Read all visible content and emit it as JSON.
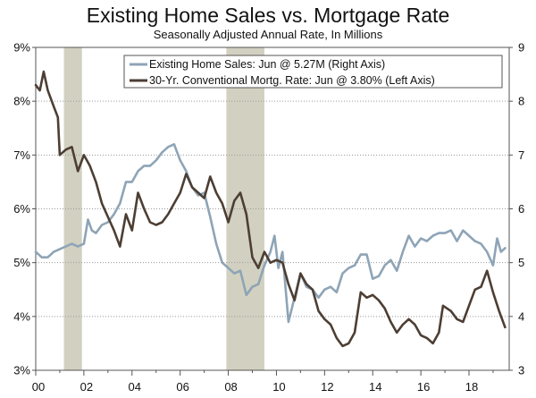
{
  "chart_data": {
    "type": "line",
    "title": "Existing Home Sales vs. Mortgage Rate",
    "subtitle": "Seasonally Adjusted Annual Rate, In Millions",
    "x_axis": {
      "range": [
        2000.0,
        2019.67
      ],
      "tick_values": [
        2000,
        2002,
        2004,
        2006,
        2008,
        2010,
        2012,
        2014,
        2016,
        2018
      ],
      "tick_labels": [
        "00",
        "02",
        "04",
        "06",
        "08",
        "10",
        "12",
        "14",
        "16",
        "18"
      ]
    },
    "left_axis": {
      "range": [
        3,
        9
      ],
      "tick_values": [
        3,
        4,
        5,
        6,
        7,
        8,
        9
      ],
      "tick_labels": [
        "3%",
        "4%",
        "5%",
        "6%",
        "7%",
        "8%",
        "9%"
      ]
    },
    "right_axis": {
      "range": [
        3,
        9
      ],
      "tick_values": [
        3,
        4,
        5,
        6,
        7,
        8,
        9
      ],
      "tick_labels": [
        "3",
        "4",
        "5",
        "6",
        "7",
        "8",
        "9"
      ]
    },
    "grid": true,
    "legend_position": "top-right",
    "recession_shading": [
      {
        "start": 2001.17,
        "end": 2001.92
      },
      {
        "start": 2007.92,
        "end": 2009.5
      }
    ],
    "series": [
      {
        "name": "Existing Home Sales: Jun @ 5.27M (Right Axis)",
        "axis": "right",
        "color": "#8ea4b6",
        "points": [
          [
            2000.0,
            5.2
          ],
          [
            2000.25,
            5.1
          ],
          [
            2000.5,
            5.1
          ],
          [
            2000.75,
            5.2
          ],
          [
            2001.0,
            5.25
          ],
          [
            2001.25,
            5.3
          ],
          [
            2001.5,
            5.35
          ],
          [
            2001.75,
            5.3
          ],
          [
            2002.0,
            5.35
          ],
          [
            2002.17,
            5.8
          ],
          [
            2002.33,
            5.6
          ],
          [
            2002.5,
            5.55
          ],
          [
            2002.75,
            5.7
          ],
          [
            2003.0,
            5.75
          ],
          [
            2003.25,
            5.9
          ],
          [
            2003.5,
            6.1
          ],
          [
            2003.75,
            6.5
          ],
          [
            2004.0,
            6.5
          ],
          [
            2004.25,
            6.7
          ],
          [
            2004.5,
            6.8
          ],
          [
            2004.75,
            6.8
          ],
          [
            2005.0,
            6.9
          ],
          [
            2005.25,
            7.05
          ],
          [
            2005.5,
            7.15
          ],
          [
            2005.75,
            7.2
          ],
          [
            2006.0,
            6.9
          ],
          [
            2006.25,
            6.7
          ],
          [
            2006.5,
            6.4
          ],
          [
            2006.75,
            6.25
          ],
          [
            2007.0,
            6.3
          ],
          [
            2007.25,
            5.85
          ],
          [
            2007.5,
            5.35
          ],
          [
            2007.75,
            5.0
          ],
          [
            2008.0,
            4.9
          ],
          [
            2008.25,
            4.8
          ],
          [
            2008.5,
            4.85
          ],
          [
            2008.75,
            4.4
          ],
          [
            2009.0,
            4.55
          ],
          [
            2009.25,
            4.6
          ],
          [
            2009.5,
            4.95
          ],
          [
            2009.75,
            5.2
          ],
          [
            2009.92,
            5.5
          ],
          [
            2010.08,
            4.9
          ],
          [
            2010.25,
            5.2
          ],
          [
            2010.5,
            3.9
          ],
          [
            2010.75,
            4.35
          ],
          [
            2011.0,
            4.8
          ],
          [
            2011.25,
            4.55
          ],
          [
            2011.5,
            4.5
          ],
          [
            2011.75,
            4.35
          ],
          [
            2012.0,
            4.5
          ],
          [
            2012.25,
            4.55
          ],
          [
            2012.5,
            4.45
          ],
          [
            2012.75,
            4.8
          ],
          [
            2013.0,
            4.9
          ],
          [
            2013.25,
            4.95
          ],
          [
            2013.5,
            5.15
          ],
          [
            2013.75,
            5.15
          ],
          [
            2014.0,
            4.7
          ],
          [
            2014.25,
            4.75
          ],
          [
            2014.5,
            4.95
          ],
          [
            2014.75,
            5.05
          ],
          [
            2015.0,
            4.85
          ],
          [
            2015.25,
            5.2
          ],
          [
            2015.5,
            5.5
          ],
          [
            2015.75,
            5.3
          ],
          [
            2016.0,
            5.45
          ],
          [
            2016.25,
            5.4
          ],
          [
            2016.5,
            5.5
          ],
          [
            2016.75,
            5.55
          ],
          [
            2017.0,
            5.55
          ],
          [
            2017.25,
            5.6
          ],
          [
            2017.5,
            5.4
          ],
          [
            2017.75,
            5.6
          ],
          [
            2018.0,
            5.5
          ],
          [
            2018.25,
            5.4
          ],
          [
            2018.5,
            5.35
          ],
          [
            2018.75,
            5.2
          ],
          [
            2019.0,
            4.95
          ],
          [
            2019.17,
            5.45
          ],
          [
            2019.33,
            5.2
          ],
          [
            2019.5,
            5.27
          ]
        ]
      },
      {
        "name": "30-Yr. Conventional Mortg. Rate: Jun @ 3.80% (Left Axis)",
        "axis": "left",
        "color": "#4d3e33",
        "points": [
          [
            2000.0,
            8.3
          ],
          [
            2000.17,
            8.2
          ],
          [
            2000.33,
            8.55
          ],
          [
            2000.5,
            8.2
          ],
          [
            2000.75,
            7.9
          ],
          [
            2000.92,
            7.7
          ],
          [
            2001.0,
            7.0
          ],
          [
            2001.25,
            7.1
          ],
          [
            2001.5,
            7.15
          ],
          [
            2001.75,
            6.7
          ],
          [
            2002.0,
            7.0
          ],
          [
            2002.25,
            6.8
          ],
          [
            2002.5,
            6.5
          ],
          [
            2002.75,
            6.1
          ],
          [
            2003.0,
            5.85
          ],
          [
            2003.25,
            5.6
          ],
          [
            2003.5,
            5.3
          ],
          [
            2003.75,
            5.9
          ],
          [
            2004.0,
            5.6
          ],
          [
            2004.25,
            6.3
          ],
          [
            2004.5,
            6.0
          ],
          [
            2004.75,
            5.75
          ],
          [
            2005.0,
            5.7
          ],
          [
            2005.25,
            5.75
          ],
          [
            2005.5,
            5.9
          ],
          [
            2005.75,
            6.1
          ],
          [
            2006.0,
            6.3
          ],
          [
            2006.25,
            6.65
          ],
          [
            2006.5,
            6.4
          ],
          [
            2006.75,
            6.3
          ],
          [
            2007.0,
            6.2
          ],
          [
            2007.25,
            6.6
          ],
          [
            2007.5,
            6.3
          ],
          [
            2007.75,
            6.1
          ],
          [
            2008.0,
            5.75
          ],
          [
            2008.25,
            6.15
          ],
          [
            2008.5,
            6.3
          ],
          [
            2008.75,
            5.9
          ],
          [
            2009.0,
            5.1
          ],
          [
            2009.25,
            4.9
          ],
          [
            2009.5,
            5.2
          ],
          [
            2009.75,
            5.0
          ],
          [
            2010.0,
            5.05
          ],
          [
            2010.25,
            5.0
          ],
          [
            2010.5,
            4.6
          ],
          [
            2010.75,
            4.3
          ],
          [
            2011.0,
            4.8
          ],
          [
            2011.25,
            4.6
          ],
          [
            2011.5,
            4.5
          ],
          [
            2011.75,
            4.1
          ],
          [
            2012.0,
            3.95
          ],
          [
            2012.25,
            3.85
          ],
          [
            2012.5,
            3.6
          ],
          [
            2012.75,
            3.45
          ],
          [
            2013.0,
            3.5
          ],
          [
            2013.25,
            3.7
          ],
          [
            2013.5,
            4.45
          ],
          [
            2013.75,
            4.35
          ],
          [
            2014.0,
            4.4
          ],
          [
            2014.25,
            4.3
          ],
          [
            2014.5,
            4.15
          ],
          [
            2014.75,
            3.9
          ],
          [
            2015.0,
            3.7
          ],
          [
            2015.25,
            3.85
          ],
          [
            2015.5,
            3.95
          ],
          [
            2015.75,
            3.85
          ],
          [
            2016.0,
            3.65
          ],
          [
            2016.25,
            3.6
          ],
          [
            2016.5,
            3.5
          ],
          [
            2016.75,
            3.7
          ],
          [
            2016.92,
            4.2
          ],
          [
            2017.25,
            4.1
          ],
          [
            2017.5,
            3.95
          ],
          [
            2017.75,
            3.9
          ],
          [
            2018.0,
            4.2
          ],
          [
            2018.25,
            4.5
          ],
          [
            2018.5,
            4.55
          ],
          [
            2018.75,
            4.85
          ],
          [
            2019.0,
            4.45
          ],
          [
            2019.25,
            4.1
          ],
          [
            2019.5,
            3.8
          ]
        ]
      }
    ]
  },
  "colors": {
    "recession_band": "#d2d1c1",
    "gridline": "#9a9a9a",
    "axis": "#555555"
  }
}
